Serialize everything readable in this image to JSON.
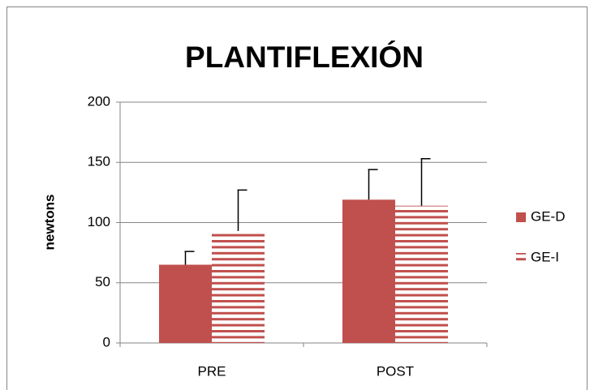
{
  "chart_data": {
    "type": "bar",
    "title": "PLANTIFLEXIÓN",
    "y_label": "newtons",
    "categories": [
      "PRE",
      "POST"
    ],
    "series": [
      {
        "name": "GE-D",
        "color": "#c0504d",
        "fill": "solid",
        "values": [
          65,
          119
        ],
        "errors": [
          11,
          25
        ]
      },
      {
        "name": "GE-I",
        "color": "#c0504d",
        "fill": "horizontal-stripes",
        "values": [
          93,
          114
        ],
        "errors": [
          34,
          39
        ]
      }
    ],
    "ylim": [
      0,
      200
    ],
    "yticks": [
      0,
      50,
      100,
      150,
      200
    ],
    "grid": true,
    "legend": "right"
  }
}
